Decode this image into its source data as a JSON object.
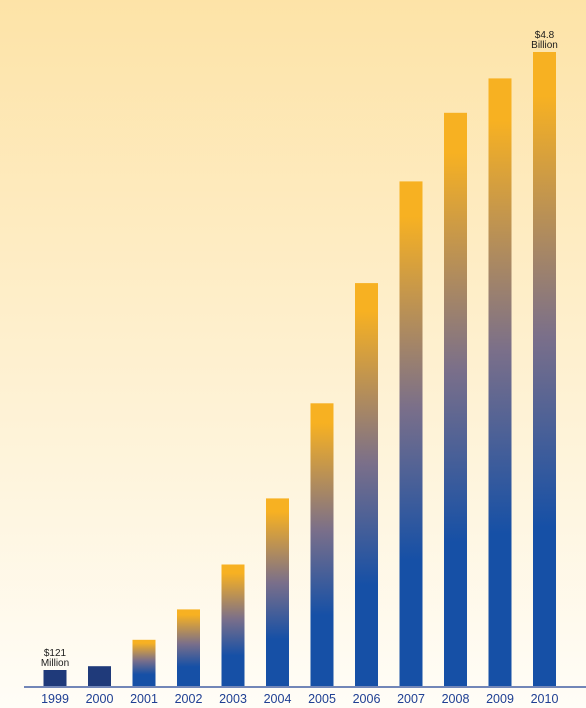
{
  "chart_data": {
    "type": "bar",
    "title": "",
    "xlabel": "",
    "ylabel": "",
    "categories": [
      "1999",
      "2000",
      "2001",
      "2002",
      "2003",
      "2004",
      "2005",
      "2006",
      "2007",
      "2008",
      "2009",
      "2010"
    ],
    "values": [
      0.121,
      0.15,
      0.35,
      0.58,
      0.92,
      1.42,
      2.14,
      3.05,
      3.82,
      4.34,
      4.6,
      4.8
    ],
    "units": "USD billions",
    "ylim": [
      0,
      4.8
    ],
    "grid": false,
    "legend": "none",
    "annotations": [
      {
        "category": "1999",
        "lines": [
          "$121",
          "Million"
        ]
      },
      {
        "category": "2010",
        "lines": [
          "$4.8",
          "Billion"
        ]
      }
    ],
    "colors": {
      "background_top": "#fde3a7",
      "background_bottom": "#fffdf7",
      "bar_solid": "#1f3a7a",
      "bar_top": "#f7b122",
      "bar_mid": "#7a6f8a",
      "bar_bottom": "#1650a6",
      "axis": "#1f3f93",
      "tick_text": "#1f3f93"
    }
  }
}
